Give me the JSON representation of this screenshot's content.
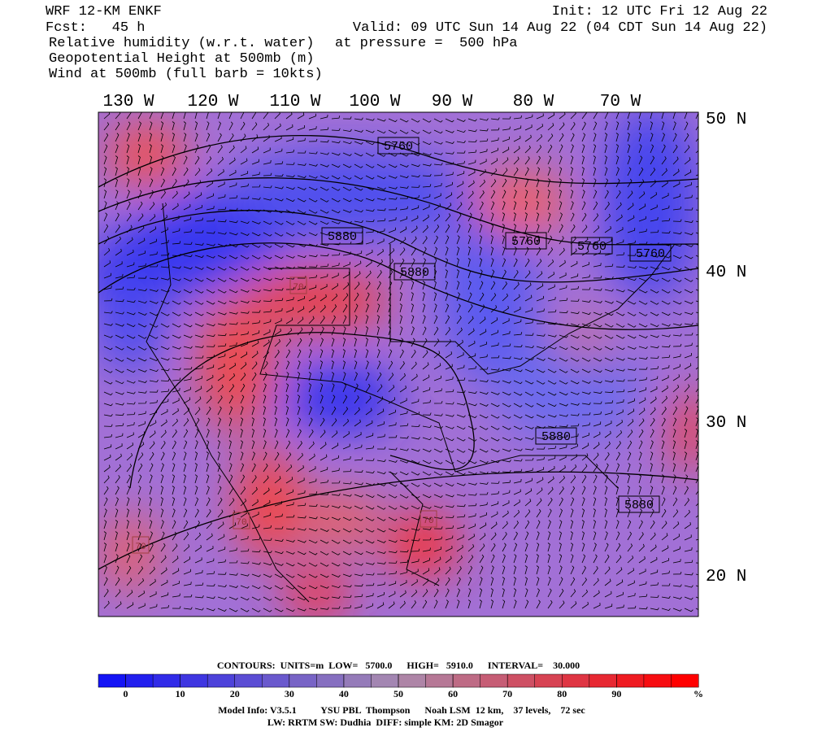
{
  "header": {
    "title": "WRF 12-KM ENKF",
    "forecast": "Fcst:   45 h",
    "init": "Init: 12 UTC Fri 12 Aug 22",
    "valid": "Valid: 09 UTC Sun 14 Aug 22 (04 CDT Sun 14 Aug 22)",
    "fields": [
      "Relative humidity (w.r.t. water)",
      "Geopotential Height at 500mb (m)",
      "Wind at 500mb (full barb = 10kts)"
    ],
    "pressure": "at pressure =  500 hPa"
  },
  "map": {
    "lon_labels": [
      "130 W",
      "120 W",
      "110 W",
      "100 W",
      "90 W",
      "80 W",
      "70 W"
    ],
    "lat_labels": [
      "50 N",
      "40 N",
      "30 N",
      "20 N"
    ],
    "contour_labels": [
      "5760",
      "5880",
      "5880",
      "5760",
      "5760",
      "5760",
      "5880",
      "5880",
      "70",
      "70",
      "70",
      "70"
    ]
  },
  "colorbar": {
    "lim": [
      -5,
      105
    ],
    "ticks": [
      0,
      10,
      20,
      30,
      40,
      50,
      60,
      70,
      80,
      90
    ],
    "unit": "%"
  },
  "footer": {
    "contours": "CONTOURS:  UNITS=m  LOW=   5700.0      HIGH=   5910.0      INTERVAL=    30.000",
    "model_info": "Model Info: V3.5.1          YSU PBL  Thompson      Noah LSM  12 km,    37 levels,    72 sec",
    "model_info2": "LW: RRTM SW: Dudhia  DIFF: simple KM: 2D Smagor"
  }
}
